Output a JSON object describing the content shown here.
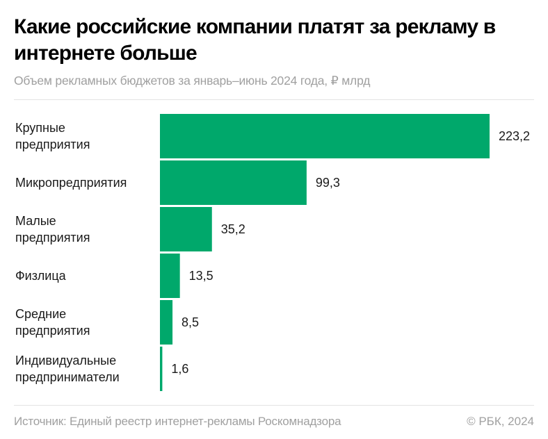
{
  "header": {
    "title": "Какие российские компании платят за рекламу в интернете больше",
    "subtitle": "Объем рекламных бюджетов за январь–июнь 2024 года, ₽ млрд"
  },
  "footer": {
    "source": "Источник: Единый реестр интернет-рекламы Роскомнадзора",
    "copyright": "© РБК, 2024"
  },
  "colors": {
    "bar": "#00a86b",
    "text": "#1a1a1a",
    "muted": "#a0a0a0"
  },
  "chart_data": {
    "type": "bar",
    "orientation": "horizontal",
    "title": "Какие российские компании платят за рекламу в интернете больше",
    "subtitle": "Объем рекламных бюджетов за январь–июнь 2024 года, ₽ млрд",
    "categories": [
      [
        "Крупные",
        "предприятия"
      ],
      [
        "Микропредприятия"
      ],
      [
        "Малые",
        "предприятия"
      ],
      [
        "Физлица"
      ],
      [
        "Средние",
        "предприятия"
      ],
      [
        "Индивидуальные",
        "предприниматели"
      ]
    ],
    "values": [
      223.2,
      99.3,
      35.2,
      13.5,
      8.5,
      1.6
    ],
    "value_labels": [
      "223,2",
      "99,3",
      "35,2",
      "13,5",
      "8,5",
      "1,6"
    ],
    "xlim": [
      0,
      223.2
    ],
    "grid": false,
    "legend": "none"
  }
}
